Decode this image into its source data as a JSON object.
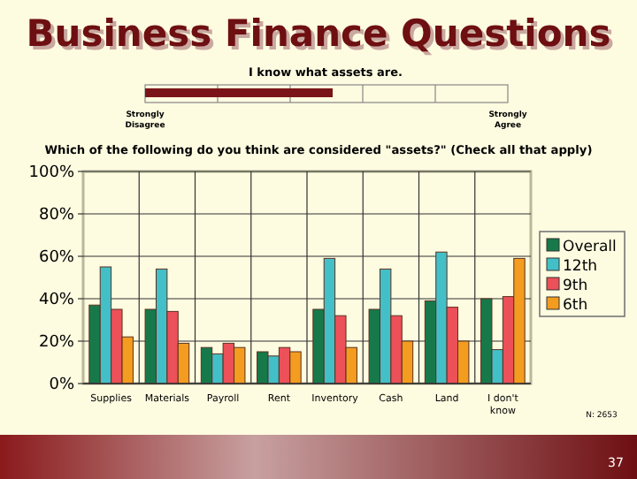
{
  "chart_data": {
    "type": "bar",
    "title": "Business Finance Questions",
    "subtitle": "Which of the following do you think are considered \"assets?\" (Check all that apply)",
    "categories": [
      "Supplies",
      "Materials",
      "Payroll",
      "Rent",
      "Inventory",
      "Cash",
      "Land",
      "I don't know"
    ],
    "series": [
      {
        "name": "Overall",
        "color": "#17794a",
        "values": [
          37,
          35,
          17,
          15,
          35,
          35,
          39,
          40
        ]
      },
      {
        "name": "12th",
        "color": "#43bfc7",
        "values": [
          55,
          54,
          14,
          13,
          59,
          54,
          62,
          16
        ]
      },
      {
        "name": "9th",
        "color": "#ec5058",
        "values": [
          35,
          34,
          19,
          17,
          32,
          32,
          36,
          41
        ]
      },
      {
        "name": "6th",
        "color": "#f39c1f",
        "values": [
          22,
          19,
          17,
          15,
          17,
          20,
          20,
          59
        ]
      }
    ],
    "ylim": [
      0,
      100
    ],
    "yticks": [
      {
        "value": 0,
        "label": "0%"
      },
      {
        "value": 20,
        "label": "20%"
      },
      {
        "value": 40,
        "label": "40%"
      },
      {
        "value": 60,
        "label": "60%"
      },
      {
        "value": 80,
        "label": "80%"
      },
      {
        "value": 100,
        "label": "100%"
      }
    ],
    "grid": true,
    "legend": "right",
    "annotations": [
      "I know what assets are.",
      "Strongly Disagree",
      "Strongly Agree",
      "N: 2653",
      "37"
    ]
  }
}
